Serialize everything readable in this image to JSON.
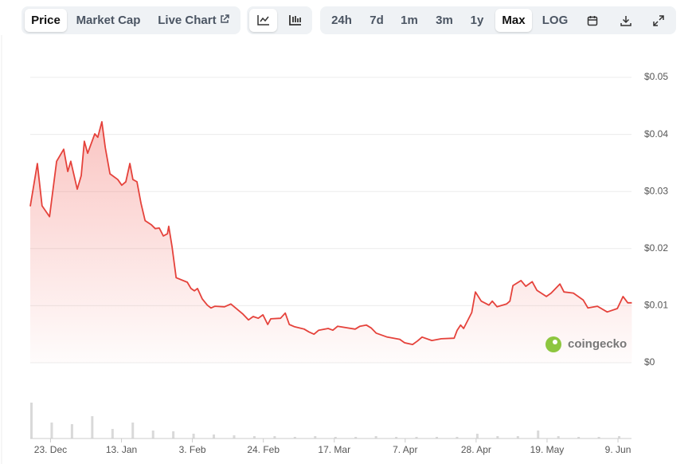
{
  "toolbar": {
    "view_tabs": [
      "Price",
      "Market Cap",
      "Live Chart"
    ],
    "active_view": "Price",
    "ranges": [
      "24h",
      "7d",
      "1m",
      "3m",
      "1y",
      "Max",
      "LOG"
    ],
    "active_range": "Max"
  },
  "chart_data": {
    "type": "line",
    "watermark": "coingecko",
    "series": [
      {
        "color": "#e5423b",
        "x": [
          0,
          2.1,
          3.5,
          5.7,
          7.8,
          9.9,
          11.1,
          12.0,
          13.9,
          15.1,
          16.0,
          17.0,
          19.1,
          20.0,
          21.2,
          22.2,
          23.6,
          25.9,
          27.1,
          28.3,
          29.5,
          30.4,
          31.6,
          32.8,
          34.0,
          35.8,
          37.0,
          38.2,
          39.4,
          40.6,
          41.0,
          42.0,
          43.2,
          46.5,
          47.6,
          48.6,
          49.5,
          50.9,
          52.4,
          53.5,
          54.7,
          57.5,
          59.4,
          61.8,
          63.0,
          64.6,
          66.0,
          67.5,
          68.9,
          70.3,
          71.2,
          74.1,
          75.5,
          76.7,
          78.3,
          81.1,
          82.5,
          84.0,
          85.4,
          88.2,
          89.6,
          91.0,
          93.9,
          96.2,
          97.6,
          99.5,
          100.9,
          102.4,
          105.7,
          109.4,
          110.8,
          113.2,
          114.6,
          116.0,
          118.9,
          121.7,
          125.5,
          126.4,
          127.4,
          128.3,
          130.7,
          131.8,
          133.5,
          135.8,
          136.8,
          138.2,
          141.0,
          142.0,
          142.9,
          145.3,
          146.7,
          148.6,
          150.0,
          152.8,
          154.2,
          156.8,
          158.0,
          160.8,
          163.7,
          165.1,
          167.9,
          170.8,
          173.8,
          175.5,
          176.9,
          178.1
        ],
        "values": [
          0.0274,
          0.0349,
          0.0275,
          0.0256,
          0.0353,
          0.0374,
          0.0335,
          0.0353,
          0.0304,
          0.0328,
          0.0388,
          0.0367,
          0.0401,
          0.0395,
          0.0422,
          0.0377,
          0.0331,
          0.0321,
          0.0311,
          0.0317,
          0.0349,
          0.0321,
          0.0317,
          0.0279,
          0.0249,
          0.0242,
          0.0235,
          0.0236,
          0.0222,
          0.0226,
          0.0239,
          0.0203,
          0.0149,
          0.0141,
          0.013,
          0.0126,
          0.013,
          0.0112,
          0.0101,
          0.0096,
          0.0099,
          0.0098,
          0.0103,
          0.0091,
          0.0085,
          0.0075,
          0.0081,
          0.0078,
          0.0084,
          0.0067,
          0.0077,
          0.0078,
          0.0087,
          0.0067,
          0.0063,
          0.0059,
          0.0054,
          0.005,
          0.0057,
          0.006,
          0.0057,
          0.0064,
          0.0061,
          0.0059,
          0.0064,
          0.0066,
          0.0061,
          0.0052,
          0.0045,
          0.0041,
          0.0035,
          0.0032,
          0.0038,
          0.0045,
          0.0039,
          0.0042,
          0.0043,
          0.0057,
          0.0066,
          0.006,
          0.0088,
          0.0124,
          0.0108,
          0.0101,
          0.0108,
          0.0098,
          0.0103,
          0.0108,
          0.0135,
          0.0144,
          0.0134,
          0.0142,
          0.0127,
          0.0116,
          0.0122,
          0.0138,
          0.0124,
          0.0122,
          0.011,
          0.0096,
          0.0099,
          0.0089,
          0.0095,
          0.0116,
          0.0105,
          0.0105
        ]
      }
    ],
    "xlim": [
      0,
      178
    ],
    "xticks": [
      {
        "value": 6,
        "label": "23. Dec"
      },
      {
        "value": 27,
        "label": "13. Jan"
      },
      {
        "value": 48,
        "label": "3. Feb"
      },
      {
        "value": 69,
        "label": "24. Feb"
      },
      {
        "value": 90,
        "label": "17. Mar"
      },
      {
        "value": 111,
        "label": "7. Apr"
      },
      {
        "value": 132,
        "label": "28. Apr"
      },
      {
        "value": 153,
        "label": "19. May"
      },
      {
        "value": 174,
        "label": "9. Jun"
      }
    ],
    "ylim": [
      0,
      0.05
    ],
    "yticks": [
      {
        "value": 0,
        "label": "$0"
      },
      {
        "value": 0.01,
        "label": "$0.01"
      },
      {
        "value": 0.02,
        "label": "$0.02"
      },
      {
        "value": 0.03,
        "label": "$0.03"
      },
      {
        "value": 0.04,
        "label": "$0.04"
      },
      {
        "value": 0.05,
        "label": "$0.05"
      }
    ],
    "grid": true,
    "volume": {
      "color": "#d9d9d9",
      "x": [
        0,
        6,
        12,
        18,
        24,
        30,
        36,
        42,
        48,
        54,
        60,
        66,
        72,
        78,
        84,
        90,
        96,
        102,
        108,
        114,
        120,
        126,
        132,
        138,
        144,
        150,
        156,
        162,
        168,
        174
      ],
      "values": [
        45,
        20,
        18,
        28,
        12,
        20,
        10,
        9,
        6,
        5,
        4,
        3,
        3,
        2,
        3,
        2,
        2,
        3,
        2,
        2,
        2,
        2,
        6,
        3,
        3,
        10,
        3,
        2,
        2,
        3
      ],
      "ylim": [
        0,
        50
      ]
    }
  }
}
